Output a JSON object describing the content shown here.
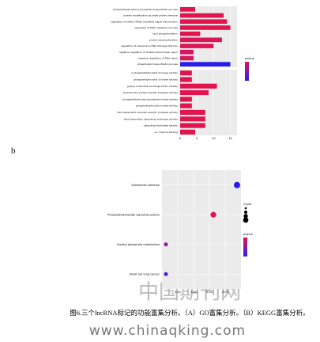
{
  "label_b": "b",
  "chart_data": [
    {
      "type": "bar",
      "orientation": "horizontal",
      "legend_title": "pvalue",
      "xlim": [
        0,
        17
      ],
      "xticks": [
        0,
        5,
        10,
        15
      ],
      "panels": [
        {
          "categories": [
            "phosphatidylinositol-3-phosphate biosynthetic process",
            "protein modification by small protein removal",
            "regulation of small GTPase mediated signal transduction",
            "regulation of DNA metabolic process",
            "lipid phosphorylation",
            "protein deubiquitination",
            "regulation of response to DNA damage stimulus",
            "negative regulation of double-strand break repair",
            "negative regulation of DNA repair",
            "phospholipid biosynthetic process"
          ],
          "values": [
            4.5,
            13,
            14,
            15,
            6,
            12.5,
            10,
            4,
            4,
            15
          ],
          "colors": [
            "#e0154e",
            "#e0154e",
            "#e0154e",
            "#e0154e",
            "#e0154e",
            "#d91658",
            "#dc1655",
            "#d4175f",
            "#d4175f",
            "#2a1ee6"
          ]
        },
        {
          "categories": [
            "1-phosphatidylinositol-3-kinase activity",
            "phosphatidylinositol 3-kinase activity",
            "guanyl-nucleotide exchange factor activity",
            "ubiquitin-like protein-specific protease activity",
            "phosphatidylinositol phosphate kinase activity",
            "phosphatidylinositol kinase activity",
            "thiol-dependent ubiquitin-specific protease activity",
            "thiol-dependent ubiquitinyl hydrolase activity",
            "ubiquitinyl hydrolase activity",
            "ion channel binding"
          ],
          "values": [
            3.5,
            3.5,
            11,
            8.5,
            3.5,
            3.5,
            7.5,
            7.5,
            7.5,
            4.5
          ],
          "colors": [
            "#e0154e",
            "#e0154e",
            "#e0154e",
            "#e0154e",
            "#e0154e",
            "#e0154e",
            "#e0154e",
            "#e0154e",
            "#e0154e",
            "#e0154e"
          ]
        }
      ]
    },
    {
      "type": "scatter",
      "legend_title": "pvalue",
      "size_title": "Count",
      "xlim": [
        0.01,
        0.06
      ],
      "xticks": [
        0.02,
        0.03,
        0.04,
        0.05
      ],
      "categories": [
        "Salmonella infection",
        "Phosphatidylinositol signaling system",
        "Inositol phosphate metabolism",
        "Small cell lung cancer"
      ],
      "x": [
        0.0575,
        0.0425,
        0.0125,
        0.0125
      ],
      "sizes": [
        4,
        3,
        1,
        1
      ],
      "colors": [
        "#2a1ee6",
        "#e0154e",
        "#8a1aa0",
        "#4a1ccc"
      ]
    }
  ],
  "watermark": "中国期刊网",
  "caption": "图6.三个lncRNA标记的功能富集分析。（A）GO富集分析。（B）KEGG富集分析。",
  "footer": "www.chinaqking.com"
}
